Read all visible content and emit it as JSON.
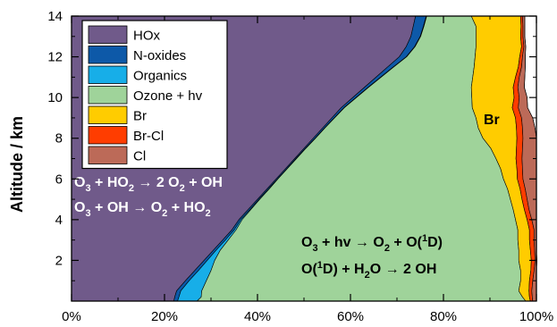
{
  "chart_data": {
    "type": "area",
    "stacked": true,
    "orientation": "horizontal",
    "x_axis": {
      "range": [
        0,
        100
      ],
      "ticks": [
        0,
        20,
        40,
        60,
        80,
        100
      ],
      "tick_labels": [
        "0%",
        "20%",
        "40%",
        "60%",
        "80%",
        "100%"
      ]
    },
    "y_axis": {
      "label": "Altitude / km",
      "range": [
        0,
        14
      ],
      "ticks": [
        2,
        4,
        6,
        8,
        10,
        12,
        14
      ],
      "tick_labels": [
        "2",
        "4",
        "6",
        "8",
        "10",
        "12",
        "14"
      ]
    },
    "altitudes": [
      0.0,
      0.2,
      0.5,
      1.0,
      1.5,
      2.0,
      2.5,
      3.0,
      3.5,
      4.0,
      4.5,
      5.0,
      5.5,
      6.0,
      6.5,
      7.0,
      7.5,
      8.0,
      8.5,
      9.0,
      9.5,
      10.0,
      10.5,
      11.0,
      11.5,
      12.0,
      12.5,
      13.0,
      13.5,
      14.0
    ],
    "series": [
      {
        "name": "HOx",
        "color": "#705a8a",
        "values": [
          22.0,
          22.2,
          22.6,
          24.5,
          26.5,
          28.5,
          30.5,
          32.5,
          34.5,
          36.0,
          38.0,
          40.0,
          42.0,
          44.0,
          46.0,
          48.0,
          50.0,
          52.0,
          54.0,
          56.0,
          58.0,
          60.5,
          63.0,
          65.5,
          68.0,
          70.5,
          72.0,
          73.0,
          73.5,
          74.0
        ]
      },
      {
        "name": "N-oxides",
        "color": "#0d59a8",
        "values": [
          0.8,
          0.9,
          0.9,
          0.8,
          0.8,
          0.7,
          0.6,
          0.6,
          0.5,
          0.4,
          0.4,
          0.3,
          0.3,
          0.3,
          0.3,
          0.3,
          0.3,
          0.4,
          0.4,
          0.5,
          0.6,
          0.7,
          0.8,
          1.0,
          1.2,
          1.5,
          1.8,
          2.0,
          2.2,
          2.3
        ]
      },
      {
        "name": "Organics",
        "color": "#17aee8",
        "values": [
          4.2,
          4.8,
          4.5,
          3.7,
          2.7,
          1.6,
          0.9,
          0.6,
          0.4,
          0.3,
          0.2,
          0.2,
          0.2,
          0.1,
          0.1,
          0.1,
          0.1,
          0.1,
          0.1,
          0.1,
          0.1,
          0.1,
          0.1,
          0.1,
          0.1,
          0.1,
          0.1,
          0.1,
          0.1,
          0.1
        ]
      },
      {
        "name": "Ozone + hv",
        "color": "#9fd39a",
        "values": [
          70.7,
          69.1,
          68.2,
          67.6,
          66.6,
          65.4,
          64.2,
          62.3,
          60.6,
          58.8,
          56.4,
          53.9,
          51.3,
          48.5,
          45.9,
          42.9,
          39.8,
          36.0,
          33.0,
          30.4,
          27.5,
          24.8,
          22.1,
          19.7,
          17.3,
          14.7,
          13.1,
          11.9,
          11.2,
          9.6
        ]
      },
      {
        "name": "Br",
        "color": "#ffcc00",
        "values": [
          1.0,
          1.5,
          2.2,
          1.9,
          2.2,
          2.7,
          2.5,
          2.5,
          2.5,
          2.5,
          2.4,
          2.5,
          2.7,
          3.0,
          3.5,
          4.3,
          5.5,
          7.3,
          8.2,
          8.5,
          8.6,
          9.1,
          9.0,
          9.2,
          9.5,
          9.6,
          9.8,
          9.6,
          9.7,
          10.6
        ]
      },
      {
        "name": "Br-Cl",
        "color": "#ff3d00",
        "values": [
          0.5,
          0.6,
          0.6,
          0.7,
          0.7,
          0.8,
          0.9,
          1.0,
          1.0,
          1.0,
          1.0,
          1.1,
          1.1,
          1.2,
          1.2,
          1.3,
          1.3,
          1.3,
          1.3,
          1.3,
          1.3,
          1.1,
          1.0,
          0.8,
          0.7,
          0.6,
          0.5,
          0.5,
          0.4,
          0.4
        ]
      },
      {
        "name": "Cl",
        "color": "#bc6a58",
        "values": [
          0.8,
          0.9,
          1.0,
          0.8,
          0.5,
          0.4,
          0.4,
          0.5,
          0.5,
          1.0,
          1.6,
          2.0,
          2.4,
          2.9,
          3.0,
          3.1,
          3.0,
          2.9,
          2.7,
          2.4,
          2.0,
          1.7,
          1.4,
          1.2,
          0.8,
          0.6,
          0.4,
          0.4,
          0.4,
          0.5
        ]
      },
      {
        "name": "",
        "color": "#ffffff",
        "values": [
          0.0,
          0.0,
          0.0,
          0.0,
          0.0,
          0.0,
          0.0,
          0.0,
          0.0,
          0.0,
          0.0,
          0.0,
          0.0,
          0.0,
          0.0,
          0.0,
          0.0,
          0.0,
          0.0,
          0.0,
          0.0,
          0.0,
          0.0,
          0.0,
          0.0,
          0.0,
          0.0,
          0.0,
          0.0,
          0.0
        ]
      }
    ],
    "legend": {
      "placement": "top-left",
      "entries": [
        "HOx",
        "N-oxides",
        "Organics",
        "Ozone + hv",
        "Br",
        "Br-Cl",
        "Cl"
      ]
    },
    "annotations": [
      {
        "id": "hox-reactions",
        "color": "#ffffff"
      },
      {
        "id": "ozone-reactions",
        "color": "#000000"
      },
      {
        "id": "br-label",
        "text": "Br",
        "color": "#000000"
      }
    ]
  }
}
